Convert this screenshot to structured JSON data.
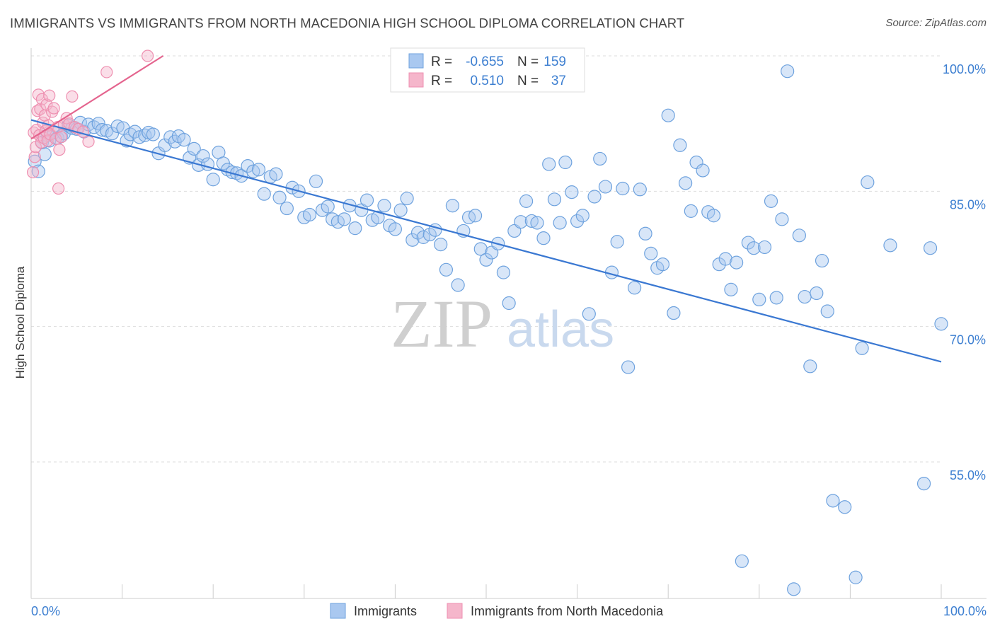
{
  "title": "IMMIGRANTS VS IMMIGRANTS FROM NORTH MACEDONIA HIGH SCHOOL DIPLOMA CORRELATION CHART",
  "source": "Source: ZipAtlas.com",
  "watermark": {
    "zip": "ZIP",
    "atlas": "atlas"
  },
  "colors": {
    "blue_fill": "#a9c8f0",
    "blue_stroke": "#6ea2de",
    "blue_line": "#3a78d2",
    "pink_fill": "#f5b6cb",
    "pink_stroke": "#ee8fb0",
    "pink_line": "#e4648e",
    "tick_text": "#3d7fd1",
    "grid": "#dddddd"
  },
  "legend": {
    "r_label": "R =",
    "n_label": "N =",
    "rows": [
      {
        "r": "-0.655",
        "n": "159"
      },
      {
        "r": "0.510",
        "n": "37"
      }
    ]
  },
  "bottom_legend": [
    "Immigrants",
    "Immigrants from North Macedonia"
  ],
  "chart_data": {
    "type": "scatter",
    "title": "IMMIGRANTS VS IMMIGRANTS FROM NORTH MACEDONIA HIGH SCHOOL DIPLOMA CORRELATION CHART",
    "xlabel": "",
    "ylabel": "High School Diploma",
    "xlim": [
      0,
      100
    ],
    "ylim": [
      41,
      102
    ],
    "x_tick_labels": [
      "0.0%",
      "100.0%"
    ],
    "y_ticks": [
      100,
      85,
      70,
      55
    ],
    "y_tick_labels": [
      "100.0%",
      "85.0%",
      "70.0%",
      "55.0%"
    ],
    "grid": true,
    "legend_position": "top-center",
    "series": [
      {
        "name": "Immigrants",
        "r": -0.655,
        "n": 159,
        "trend": {
          "x": [
            0,
            100
          ],
          "y": [
            92.9,
            66.1
          ]
        },
        "points": [
          [
            0.4,
            88.3
          ],
          [
            0.8,
            87.2
          ],
          [
            1.2,
            90.4
          ],
          [
            1.5,
            89.1
          ],
          [
            1.8,
            91.2
          ],
          [
            2.0,
            90.6
          ],
          [
            2.5,
            91.5
          ],
          [
            2.9,
            90.9
          ],
          [
            3.3,
            91.1
          ],
          [
            3.6,
            91.4
          ],
          [
            4.1,
            92.3
          ],
          [
            4.5,
            92.0
          ],
          [
            5.0,
            91.9
          ],
          [
            5.4,
            92.6
          ],
          [
            5.8,
            91.6
          ],
          [
            6.3,
            92.4
          ],
          [
            6.9,
            92.1
          ],
          [
            7.4,
            92.5
          ],
          [
            7.8,
            91.8
          ],
          [
            8.3,
            91.7
          ],
          [
            8.9,
            91.4
          ],
          [
            9.5,
            92.2
          ],
          [
            10.1,
            92.0
          ],
          [
            10.5,
            90.6
          ],
          [
            10.9,
            91.3
          ],
          [
            11.4,
            91.6
          ],
          [
            11.9,
            91.0
          ],
          [
            12.5,
            91.2
          ],
          [
            12.9,
            91.5
          ],
          [
            13.4,
            91.3
          ],
          [
            14.0,
            89.2
          ],
          [
            14.7,
            90.1
          ],
          [
            15.3,
            91.0
          ],
          [
            15.8,
            90.5
          ],
          [
            16.2,
            91.1
          ],
          [
            16.8,
            90.7
          ],
          [
            17.4,
            88.7
          ],
          [
            17.9,
            89.7
          ],
          [
            18.4,
            87.9
          ],
          [
            18.9,
            88.9
          ],
          [
            19.4,
            88.0
          ],
          [
            20.0,
            86.3
          ],
          [
            20.6,
            89.3
          ],
          [
            21.1,
            88.1
          ],
          [
            21.6,
            87.4
          ],
          [
            22.1,
            87.1
          ],
          [
            22.6,
            87.0
          ],
          [
            23.1,
            86.7
          ],
          [
            23.8,
            87.8
          ],
          [
            24.4,
            87.2
          ],
          [
            25.0,
            87.4
          ],
          [
            25.6,
            84.7
          ],
          [
            26.3,
            86.6
          ],
          [
            26.9,
            86.9
          ],
          [
            27.3,
            84.3
          ],
          [
            28.1,
            83.1
          ],
          [
            28.7,
            85.4
          ],
          [
            29.4,
            85.0
          ],
          [
            30.0,
            82.1
          ],
          [
            30.6,
            82.4
          ],
          [
            31.3,
            86.1
          ],
          [
            32.0,
            82.9
          ],
          [
            32.6,
            83.3
          ],
          [
            33.1,
            81.9
          ],
          [
            33.7,
            81.6
          ],
          [
            34.4,
            81.9
          ],
          [
            35.0,
            83.4
          ],
          [
            35.6,
            80.9
          ],
          [
            36.3,
            82.9
          ],
          [
            36.9,
            84.0
          ],
          [
            37.5,
            81.8
          ],
          [
            38.1,
            82.1
          ],
          [
            38.8,
            83.4
          ],
          [
            39.4,
            81.2
          ],
          [
            40.0,
            80.8
          ],
          [
            40.6,
            82.9
          ],
          [
            41.3,
            84.2
          ],
          [
            41.9,
            79.6
          ],
          [
            42.5,
            80.4
          ],
          [
            43.1,
            79.9
          ],
          [
            43.8,
            80.2
          ],
          [
            44.4,
            80.7
          ],
          [
            45.0,
            79.1
          ],
          [
            45.6,
            76.3
          ],
          [
            46.3,
            83.4
          ],
          [
            46.9,
            74.6
          ],
          [
            47.5,
            80.6
          ],
          [
            48.1,
            82.1
          ],
          [
            48.8,
            82.3
          ],
          [
            49.4,
            78.6
          ],
          [
            50.0,
            77.4
          ],
          [
            50.6,
            78.2
          ],
          [
            51.3,
            79.2
          ],
          [
            51.9,
            76.0
          ],
          [
            52.5,
            72.6
          ],
          [
            53.1,
            80.6
          ],
          [
            53.8,
            81.6
          ],
          [
            54.4,
            83.9
          ],
          [
            55.0,
            81.7
          ],
          [
            55.6,
            81.5
          ],
          [
            56.3,
            79.8
          ],
          [
            56.9,
            88.0
          ],
          [
            57.5,
            84.1
          ],
          [
            58.1,
            81.5
          ],
          [
            58.7,
            88.2
          ],
          [
            59.4,
            84.9
          ],
          [
            60.0,
            81.7
          ],
          [
            60.6,
            82.3
          ],
          [
            61.3,
            71.4
          ],
          [
            61.9,
            84.4
          ],
          [
            62.5,
            88.6
          ],
          [
            63.1,
            85.5
          ],
          [
            63.8,
            76.0
          ],
          [
            64.4,
            79.4
          ],
          [
            65.0,
            85.3
          ],
          [
            65.6,
            65.5
          ],
          [
            66.3,
            74.3
          ],
          [
            66.9,
            85.2
          ],
          [
            67.5,
            80.3
          ],
          [
            68.1,
            78.1
          ],
          [
            68.8,
            76.5
          ],
          [
            69.4,
            76.9
          ],
          [
            70.0,
            93.4
          ],
          [
            70.6,
            71.5
          ],
          [
            71.3,
            90.1
          ],
          [
            71.9,
            85.9
          ],
          [
            72.5,
            82.8
          ],
          [
            73.1,
            88.2
          ],
          [
            73.8,
            87.3
          ],
          [
            74.4,
            82.7
          ],
          [
            75.0,
            82.3
          ],
          [
            75.6,
            76.9
          ],
          [
            76.3,
            77.5
          ],
          [
            76.9,
            74.1
          ],
          [
            77.5,
            77.1
          ],
          [
            78.1,
            44.0
          ],
          [
            78.8,
            79.3
          ],
          [
            79.4,
            78.7
          ],
          [
            80.0,
            73.0
          ],
          [
            80.6,
            78.8
          ],
          [
            81.3,
            83.9
          ],
          [
            81.9,
            73.2
          ],
          [
            82.5,
            81.9
          ],
          [
            83.1,
            98.3
          ],
          [
            83.8,
            40.9
          ],
          [
            84.4,
            80.1
          ],
          [
            85.0,
            73.3
          ],
          [
            85.6,
            65.6
          ],
          [
            86.3,
            73.7
          ],
          [
            86.9,
            77.3
          ],
          [
            87.5,
            71.7
          ],
          [
            88.1,
            50.7
          ],
          [
            89.4,
            50.0
          ],
          [
            90.6,
            42.2
          ],
          [
            91.3,
            67.6
          ],
          [
            91.9,
            86.0
          ],
          [
            94.4,
            79.0
          ],
          [
            98.1,
            52.6
          ],
          [
            98.8,
            78.7
          ],
          [
            100.0,
            70.3
          ]
        ]
      },
      {
        "name": "Immigrants from North Macedonia",
        "r": 0.51,
        "n": 37,
        "trend": {
          "x": [
            0,
            14.5
          ],
          "y": [
            90.8,
            100.0
          ]
        },
        "points": [
          [
            0.2,
            87.1
          ],
          [
            0.3,
            91.5
          ],
          [
            0.4,
            88.8
          ],
          [
            0.5,
            89.9
          ],
          [
            0.6,
            91.8
          ],
          [
            0.7,
            93.9
          ],
          [
            0.8,
            95.7
          ],
          [
            0.9,
            91.2
          ],
          [
            1.0,
            94.1
          ],
          [
            1.1,
            90.4
          ],
          [
            1.2,
            95.2
          ],
          [
            1.3,
            92.6
          ],
          [
            1.4,
            90.9
          ],
          [
            1.5,
            93.4
          ],
          [
            1.6,
            91.7
          ],
          [
            1.7,
            94.6
          ],
          [
            1.8,
            90.6
          ],
          [
            1.9,
            92.3
          ],
          [
            2.0,
            95.6
          ],
          [
            2.1,
            91.3
          ],
          [
            2.3,
            93.8
          ],
          [
            2.5,
            94.2
          ],
          [
            2.7,
            90.8
          ],
          [
            2.9,
            92.1
          ],
          [
            3.1,
            89.6
          ],
          [
            3.3,
            91.0
          ],
          [
            3.6,
            92.4
          ],
          [
            3.9,
            93.1
          ],
          [
            4.2,
            92.5
          ],
          [
            4.5,
            95.5
          ],
          [
            4.8,
            92.1
          ],
          [
            5.2,
            91.9
          ],
          [
            5.7,
            91.6
          ],
          [
            6.3,
            90.5
          ],
          [
            8.3,
            98.2
          ],
          [
            12.8,
            100.0
          ],
          [
            3.0,
            85.3
          ]
        ]
      }
    ]
  }
}
